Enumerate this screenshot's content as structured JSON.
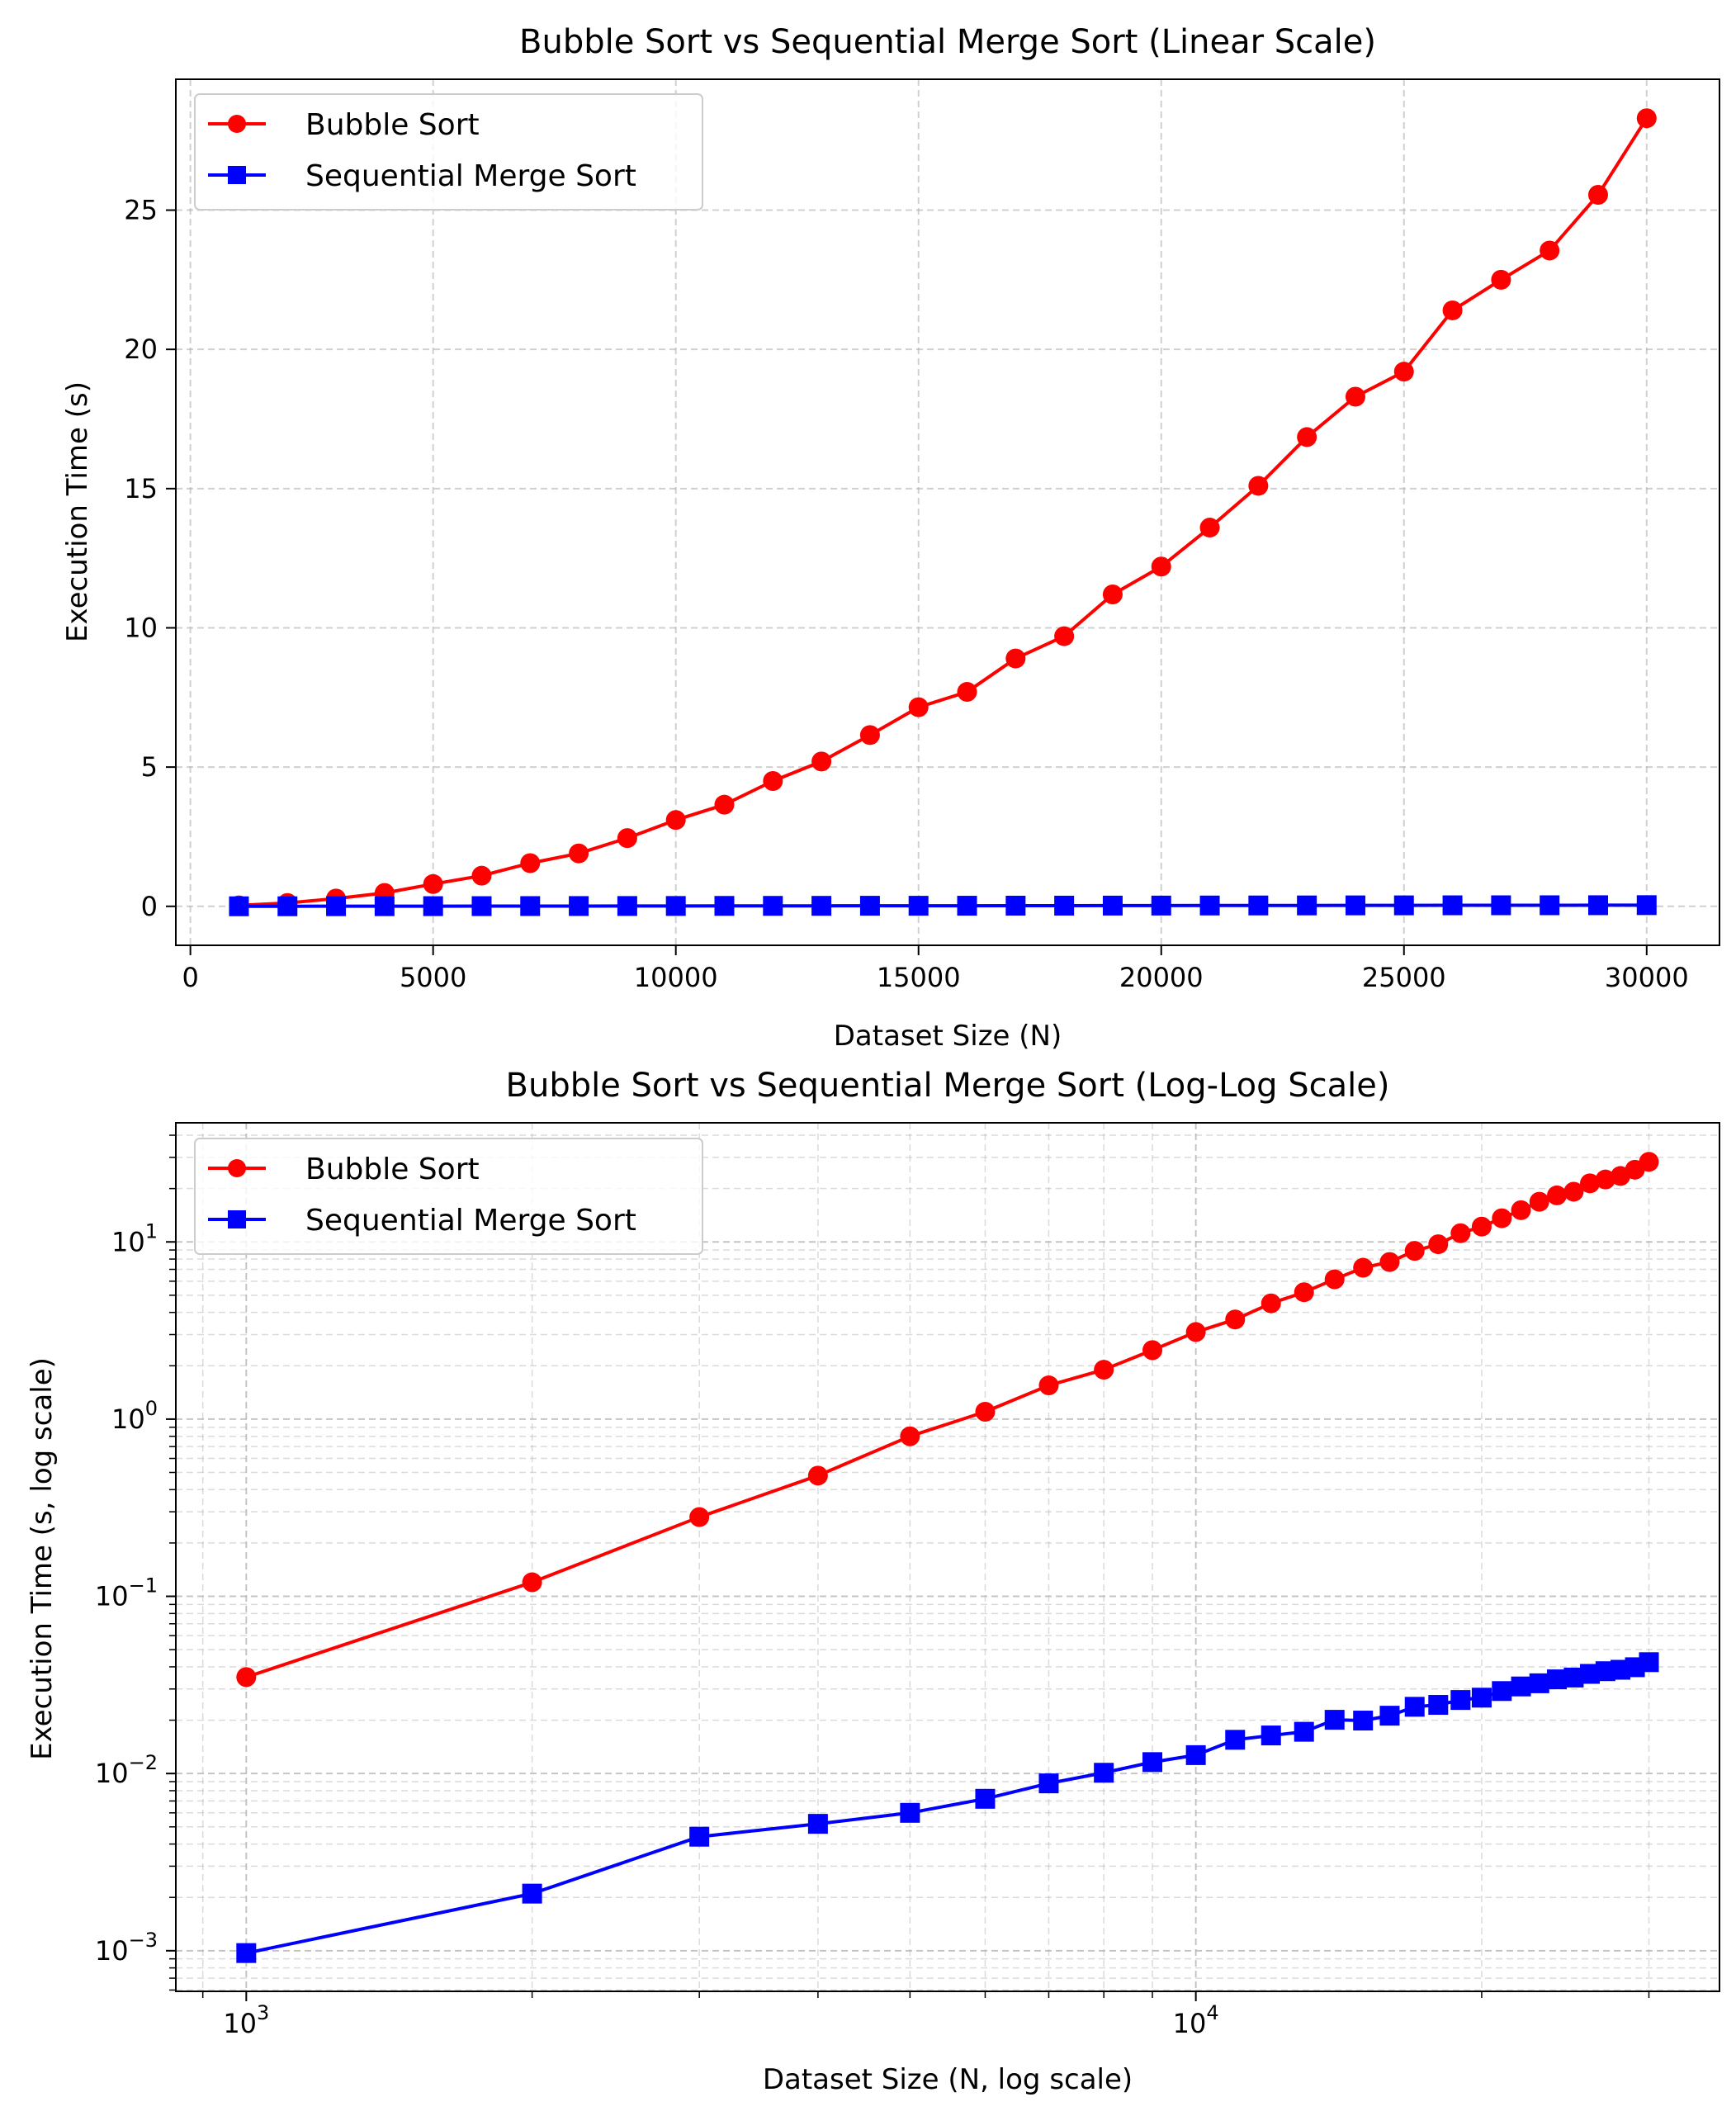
{
  "colors": {
    "bubble": "#ff0000",
    "merge": "#0000ff",
    "grid": "#b0b0b0",
    "legend_edge": "#cccccc"
  },
  "chart_data": [
    {
      "type": "line",
      "title": "Bubble Sort vs Sequential Merge Sort (Linear Scale)",
      "xlabel": "Dataset Size (N)",
      "ylabel": "Execution Time (s)",
      "xscale": "linear",
      "yscale": "linear",
      "xlim": [
        -300,
        31500
      ],
      "ylim": [
        -1.4,
        29.7
      ],
      "xticks": [
        0,
        5000,
        10000,
        15000,
        20000,
        25000,
        30000
      ],
      "xtick_labels": [
        "0",
        "5000",
        "10000",
        "15000",
        "20000",
        "25000",
        "30000"
      ],
      "yticks": [
        0,
        5,
        10,
        15,
        20,
        25
      ],
      "ytick_labels": [
        "0",
        "5",
        "10",
        "15",
        "20",
        "25"
      ],
      "grid": true,
      "legend_position": "top-left",
      "x": [
        1000,
        2000,
        3000,
        4000,
        5000,
        6000,
        7000,
        8000,
        9000,
        10000,
        11000,
        12000,
        13000,
        14000,
        15000,
        16000,
        17000,
        18000,
        19000,
        20000,
        21000,
        22000,
        23000,
        24000,
        25000,
        26000,
        27000,
        28000,
        29000,
        30000
      ],
      "series": [
        {
          "name": "Bubble Sort",
          "color": "#ff0000",
          "marker": "circle",
          "values": [
            0.035,
            0.12,
            0.28,
            0.48,
            0.8,
            1.1,
            1.55,
            1.9,
            2.45,
            3.1,
            3.65,
            4.5,
            5.2,
            6.15,
            7.15,
            7.7,
            8.9,
            9.7,
            11.2,
            12.2,
            13.6,
            15.1,
            16.85,
            18.3,
            19.2,
            21.4,
            22.5,
            23.55,
            25.55,
            28.3
          ]
        },
        {
          "name": "Sequential Merge Sort",
          "color": "#0000ff",
          "marker": "square",
          "values": [
            0.00097,
            0.0021,
            0.0044,
            0.0052,
            0.006,
            0.0072,
            0.0088,
            0.0101,
            0.0116,
            0.0127,
            0.0155,
            0.0164,
            0.0172,
            0.0201,
            0.0199,
            0.0212,
            0.0238,
            0.0244,
            0.026,
            0.0268,
            0.0292,
            0.031,
            0.0323,
            0.034,
            0.0348,
            0.0365,
            0.0378,
            0.0385,
            0.0398,
            0.0425
          ]
        }
      ]
    },
    {
      "type": "line",
      "title": "Bubble Sort vs Sequential Merge Sort (Log-Log Scale)",
      "xlabel": "Dataset Size (N, log scale)",
      "ylabel": "Execution Time (s, log scale)",
      "xscale": "log",
      "yscale": "log",
      "xlim": [
        843,
        35600
      ],
      "ylim": [
        0.00059,
        47
      ],
      "xticks": [
        1000,
        10000
      ],
      "xtick_labels": [
        {
          "base": "10",
          "exp": "3"
        },
        {
          "base": "10",
          "exp": "4"
        }
      ],
      "yticks": [
        0.001,
        0.01,
        0.1,
        1,
        10
      ],
      "ytick_labels": [
        {
          "base": "10",
          "exp": "−3"
        },
        {
          "base": "10",
          "exp": "−2"
        },
        {
          "base": "10",
          "exp": "−1"
        },
        {
          "base": "10",
          "exp": "0"
        },
        {
          "base": "10",
          "exp": "1"
        }
      ],
      "grid": true,
      "minor_grid": true,
      "legend_position": "top-left",
      "x": [
        1000,
        2000,
        3000,
        4000,
        5000,
        6000,
        7000,
        8000,
        9000,
        10000,
        11000,
        12000,
        13000,
        14000,
        15000,
        16000,
        17000,
        18000,
        19000,
        20000,
        21000,
        22000,
        23000,
        24000,
        25000,
        26000,
        27000,
        28000,
        29000,
        30000
      ],
      "series": [
        {
          "name": "Bubble Sort",
          "color": "#ff0000",
          "marker": "circle",
          "values": [
            0.035,
            0.12,
            0.28,
            0.48,
            0.8,
            1.1,
            1.55,
            1.9,
            2.45,
            3.1,
            3.65,
            4.5,
            5.2,
            6.15,
            7.15,
            7.7,
            8.9,
            9.7,
            11.2,
            12.2,
            13.6,
            15.1,
            16.85,
            18.3,
            19.2,
            21.4,
            22.5,
            23.55,
            25.55,
            28.3
          ]
        },
        {
          "name": "Sequential Merge Sort",
          "color": "#0000ff",
          "marker": "square",
          "values": [
            0.00097,
            0.0021,
            0.0044,
            0.0052,
            0.006,
            0.0072,
            0.0088,
            0.0101,
            0.0116,
            0.0127,
            0.0155,
            0.0164,
            0.0172,
            0.0201,
            0.0199,
            0.0212,
            0.0238,
            0.0244,
            0.026,
            0.0268,
            0.0292,
            0.031,
            0.0323,
            0.034,
            0.0348,
            0.0365,
            0.0378,
            0.0385,
            0.0398,
            0.0425
          ]
        }
      ]
    }
  ]
}
